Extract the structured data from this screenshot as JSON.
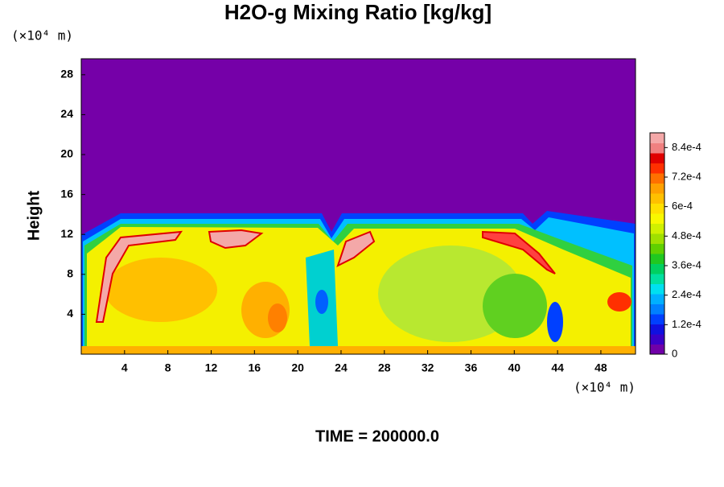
{
  "chart_data": {
    "type": "contour",
    "title": "H2O-g Mixing Ratio [kg/kg]",
    "ylabel": "Height",
    "x_unit": "(×10⁴ m)",
    "y_unit": "(×10⁴ m)",
    "footer": "TIME = 200000.0",
    "xlim": [
      0,
      51.2
    ],
    "xticks": [
      4,
      8,
      12,
      16,
      20,
      24,
      28,
      32,
      36,
      40,
      44,
      48
    ],
    "ylim": [
      0,
      29.6
    ],
    "yticks": [
      4,
      8,
      12,
      16,
      20,
      24,
      28
    ],
    "colorbar": {
      "lim": [
        0,
        0.0009
      ],
      "ticks": [
        0,
        {
          "value": 0.00012,
          "label": "1.2e-4"
        },
        {
          "value": 0.00024,
          "label": "2.4e-4"
        },
        {
          "value": 0.00036,
          "label": "3.6e-4"
        },
        {
          "value": 0.00048,
          "label": "4.8e-4"
        },
        {
          "value": 0.0006,
          "label": "6e-4"
        },
        {
          "value": 0.00072,
          "label": "7.2e-4"
        },
        {
          "value": 0.00084,
          "label": "8.4e-4"
        }
      ],
      "colors": [
        "#7000a8",
        "#3a00c8",
        "#1010e0",
        "#0040ff",
        "#0080ff",
        "#00b0ff",
        "#00e0f0",
        "#00e0a0",
        "#00d060",
        "#20c820",
        "#60d000",
        "#a0e000",
        "#d0f000",
        "#f8f800",
        "#ffe000",
        "#ffc000",
        "#ffa000",
        "#ff7000",
        "#ff3000",
        "#e00000",
        "#f08080",
        "#f4a8a8"
      ]
    }
  }
}
